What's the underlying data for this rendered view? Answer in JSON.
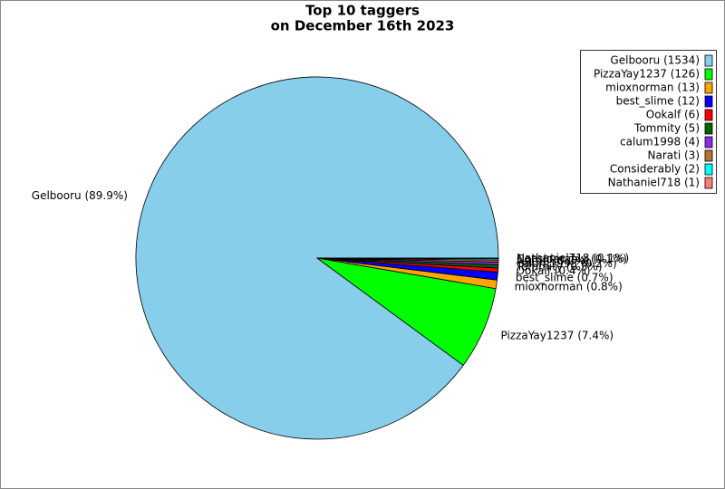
{
  "chart_data": {
    "type": "pie",
    "title": [
      "Top 10 taggers",
      "on December 16th 2023"
    ],
    "categories": [
      "Gelbooru (1534)",
      "PizzaYay1237 (126)",
      "mioxnorman (13)",
      "best_slime (12)",
      "Ookalf (6)",
      "Tommity (5)",
      "calum1998 (4)",
      "Narati (3)",
      "Considerably (2)",
      "Nathaniel718 (1)"
    ],
    "values": [
      1534,
      126,
      13,
      12,
      6,
      5,
      4,
      3,
      2,
      1
    ],
    "slice_labels": [
      "Gelbooru (89.9%)",
      "PizzaYay1237 (7.4%)",
      "mioxnorman (0.8%)",
      "best_slime (0.7%)",
      "Ookalf (0.4%)",
      "Tommity (0.3%)",
      "calum1998 (0.2%)",
      "Narati (0.2%)",
      "Considerably (0.1%)",
      "Nathaniel718 (0.1%)"
    ],
    "colors": [
      "#87ceeb",
      "#00ff00",
      "#ffa500",
      "#0000ff",
      "#ff0000",
      "#006400",
      "#8a2be2",
      "#b87333",
      "#00ffff",
      "#fa8072"
    ],
    "legend": "upper right"
  }
}
